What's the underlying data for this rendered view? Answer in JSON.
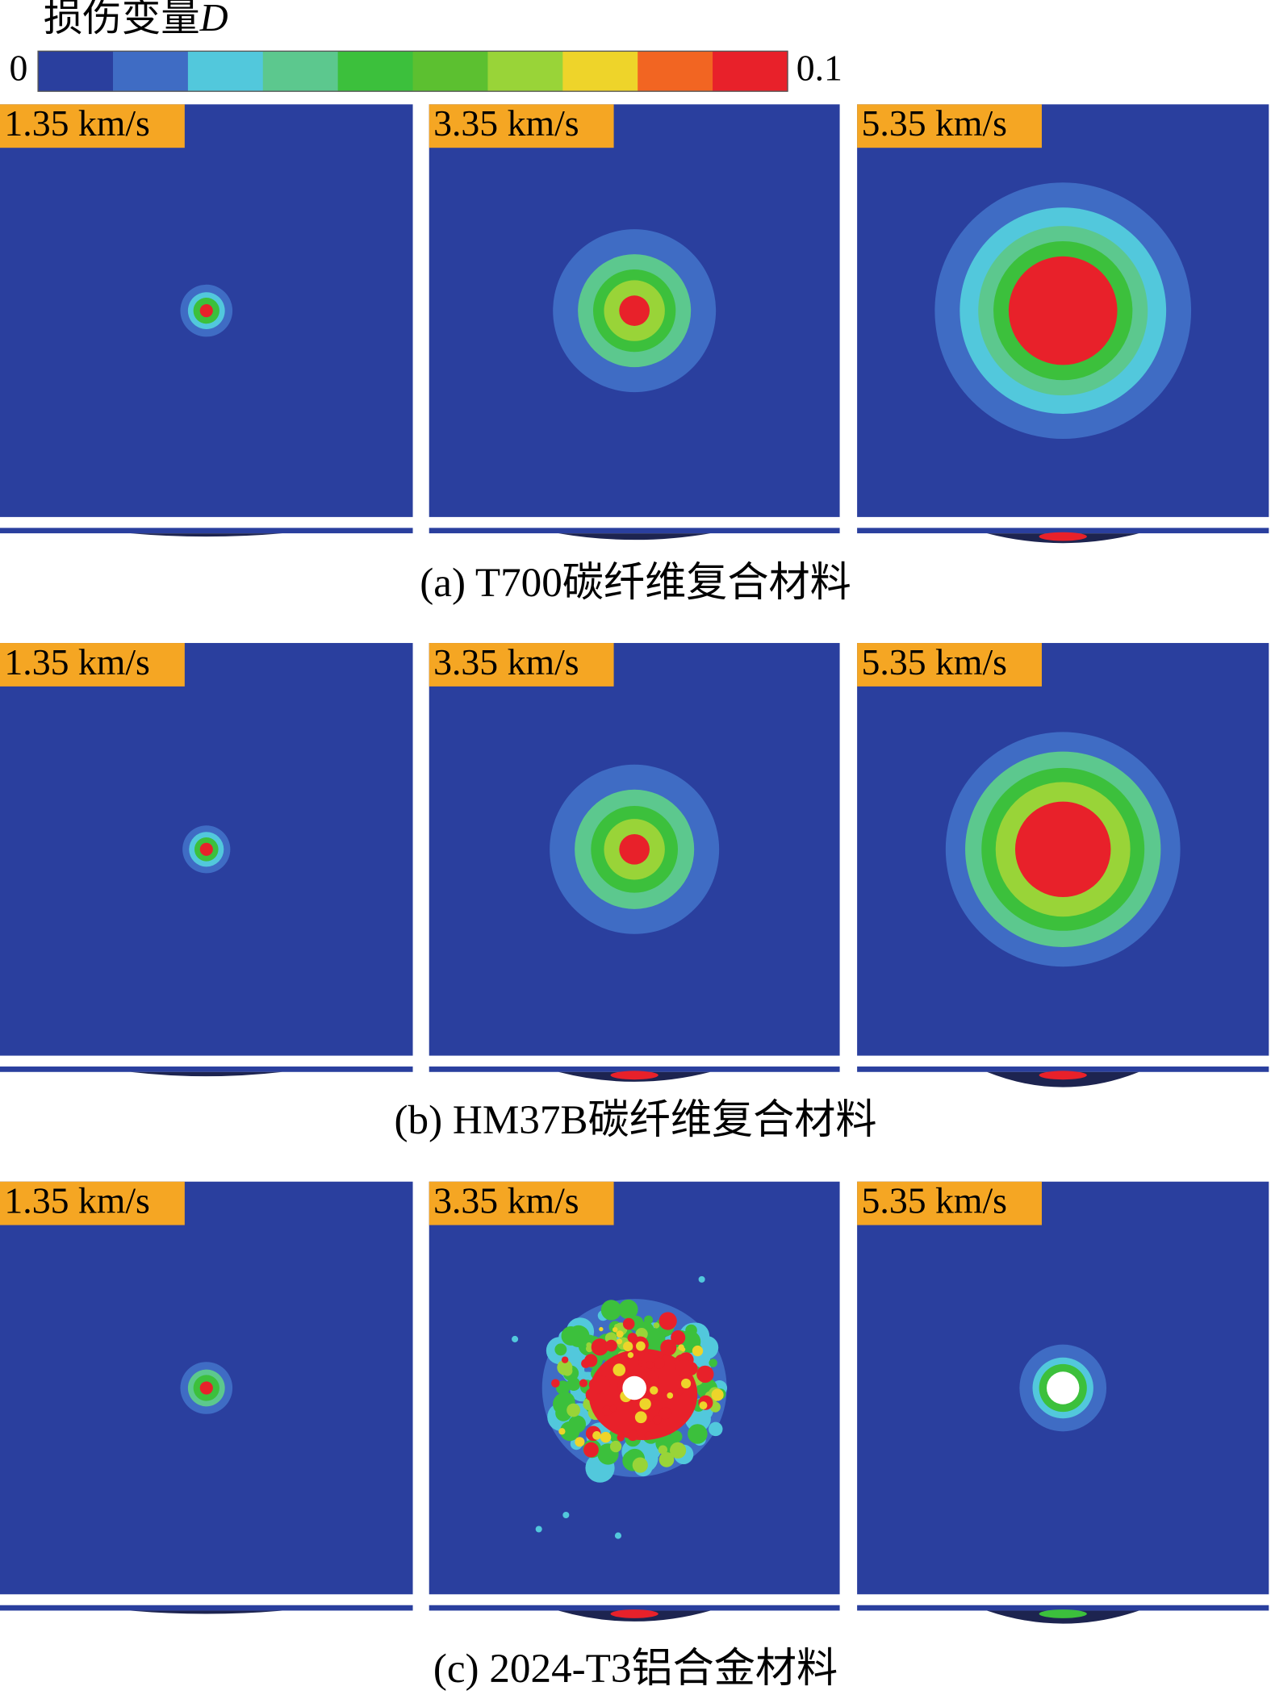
{
  "colorbar": {
    "title": "损伤变量",
    "symbol": "D",
    "min_label": "0",
    "max_label": "0.1",
    "colors": [
      "#2a3f9e",
      "#3f6cc4",
      "#52c8dc",
      "#5cc88e",
      "#3cc03c",
      "#5cc030",
      "#99d438",
      "#eed42a",
      "#f26522",
      "#e8212a"
    ]
  },
  "groups": [
    {
      "caption": "(a) T700碳纤维复合材料",
      "panels": [
        "1.35 km/s",
        "3.35 km/s",
        "5.35 km/s"
      ]
    },
    {
      "caption": "(b) HM37B碳纤维复合材料",
      "panels": [
        "1.35 km/s",
        "3.35 km/s",
        "5.35 km/s"
      ]
    },
    {
      "caption": "(c) 2024-T3铝合金材料",
      "panels": [
        "1.35 km/s",
        "3.35 km/s",
        "5.35 km/s"
      ]
    }
  ]
}
